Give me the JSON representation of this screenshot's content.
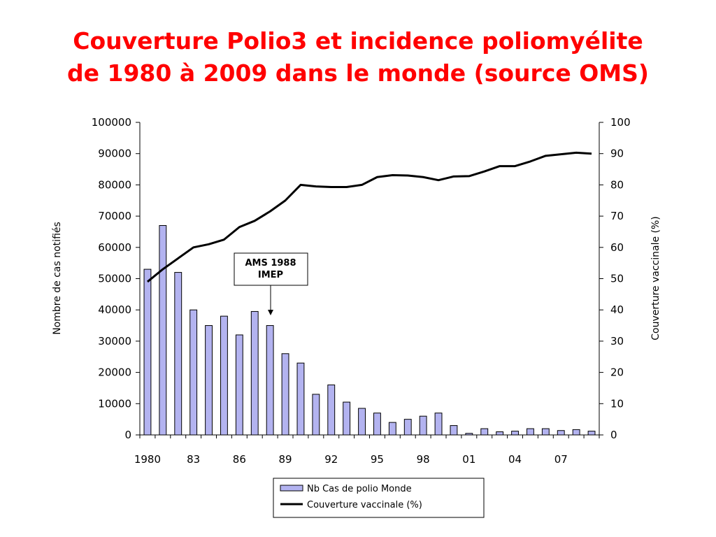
{
  "page": {
    "title_line1": "Couverture Polio3 et incidence poliomyélite",
    "title_line2": "de 1980 à 2009 dans le monde (source OMS)"
  },
  "colors": {
    "title": "#ff0000",
    "bar_fill": "#b3b3f0",
    "bar_stroke": "#000000",
    "line": "#000000"
  },
  "chart_data": {
    "type": "bar",
    "x": [
      1980,
      1981,
      1982,
      1983,
      1984,
      1985,
      1986,
      1987,
      1988,
      1989,
      1990,
      1991,
      1992,
      1993,
      1994,
      1995,
      1996,
      1997,
      1998,
      1999,
      2000,
      2001,
      2002,
      2003,
      2004,
      2005,
      2006,
      2007,
      2008,
      2009
    ],
    "x_tick_labels": [
      "1980",
      "83",
      "86",
      "89",
      "92",
      "95",
      "98",
      "01",
      "04",
      "07"
    ],
    "x_tick_years": [
      1980,
      1983,
      1986,
      1989,
      1992,
      1995,
      1998,
      2001,
      2004,
      2007
    ],
    "series": [
      {
        "name": "Nb Cas de polio Monde",
        "type": "bar",
        "axis": "left",
        "values": [
          53000,
          67000,
          52000,
          40000,
          35000,
          38000,
          32000,
          39500,
          35000,
          26000,
          23000,
          13000,
          16000,
          10500,
          8500,
          7000,
          4000,
          5000,
          6000,
          7000,
          3000,
          500,
          2000,
          1000,
          1200,
          2000,
          2000,
          1400,
          1700,
          1200
        ]
      },
      {
        "name": "Couverture vaccinale (%)",
        "type": "line",
        "axis": "right",
        "values": [
          49,
          53,
          56.5,
          60,
          61,
          62.5,
          66.5,
          68.5,
          71.5,
          75,
          80,
          79.5,
          79.3,
          79.3,
          80,
          82.5,
          83.1,
          83,
          82.5,
          81.5,
          82.7,
          82.8,
          84.3,
          86,
          86,
          87.5,
          89.3,
          89.8,
          90.3,
          90
        ]
      }
    ],
    "ylabel": "Nombre de cas notifiés",
    "y2label": "Couverture vaccinale (%)",
    "ylim": [
      0,
      100000
    ],
    "y2lim": [
      0,
      100
    ],
    "yticks": [
      "0",
      "10000",
      "20000",
      "30000",
      "40000",
      "50000",
      "60000",
      "70000",
      "80000",
      "90000",
      "100000"
    ],
    "y2ticks": [
      "0",
      "10",
      "20",
      "30",
      "40",
      "50",
      "60",
      "70",
      "80",
      "90",
      "100"
    ],
    "annotation": {
      "line1": "AMS 1988",
      "line2": "IMEP",
      "year": 1988
    },
    "legend": [
      "Nb Cas de polio Monde",
      "Couverture vaccinale (%)"
    ],
    "legend_position": "bottom",
    "grid": false
  }
}
